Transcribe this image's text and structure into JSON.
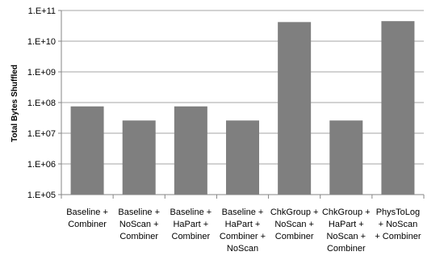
{
  "chart_data": {
    "type": "bar",
    "title": "",
    "xlabel": "",
    "ylabel": "Total Bytes Shuffled",
    "yscale": "log",
    "ylim": [
      100000,
      100000000000
    ],
    "yticks": [
      100000,
      1000000,
      10000000,
      100000000,
      1000000000,
      10000000000,
      100000000000
    ],
    "ytick_labels": [
      "1.E+05",
      "1.E+06",
      "1.E+07",
      "1.E+08",
      "1.E+09",
      "1.E+10",
      "1.E+11"
    ],
    "grid": "horizontal",
    "categories": [
      [
        "Baseline +",
        "Combiner"
      ],
      [
        "Baseline +",
        "NoScan +",
        "Combiner"
      ],
      [
        "Baseline +",
        "HaPart +",
        "Combiner"
      ],
      [
        "Baseline +",
        "HaPart +",
        "Combiner +",
        "NoScan"
      ],
      [
        "ChkGroup +",
        "NoScan +",
        "Combiner"
      ],
      [
        "ChkGroup +",
        "HaPart +",
        "NoScan +",
        "Combiner"
      ],
      [
        "PhysToLog",
        "+ NoScan",
        "+ Combiner"
      ]
    ],
    "values": [
      75000000,
      26000000,
      75000000,
      26000000,
      42000000000,
      26000000,
      45000000000
    ],
    "bar_color": "#7f7f7f"
  }
}
